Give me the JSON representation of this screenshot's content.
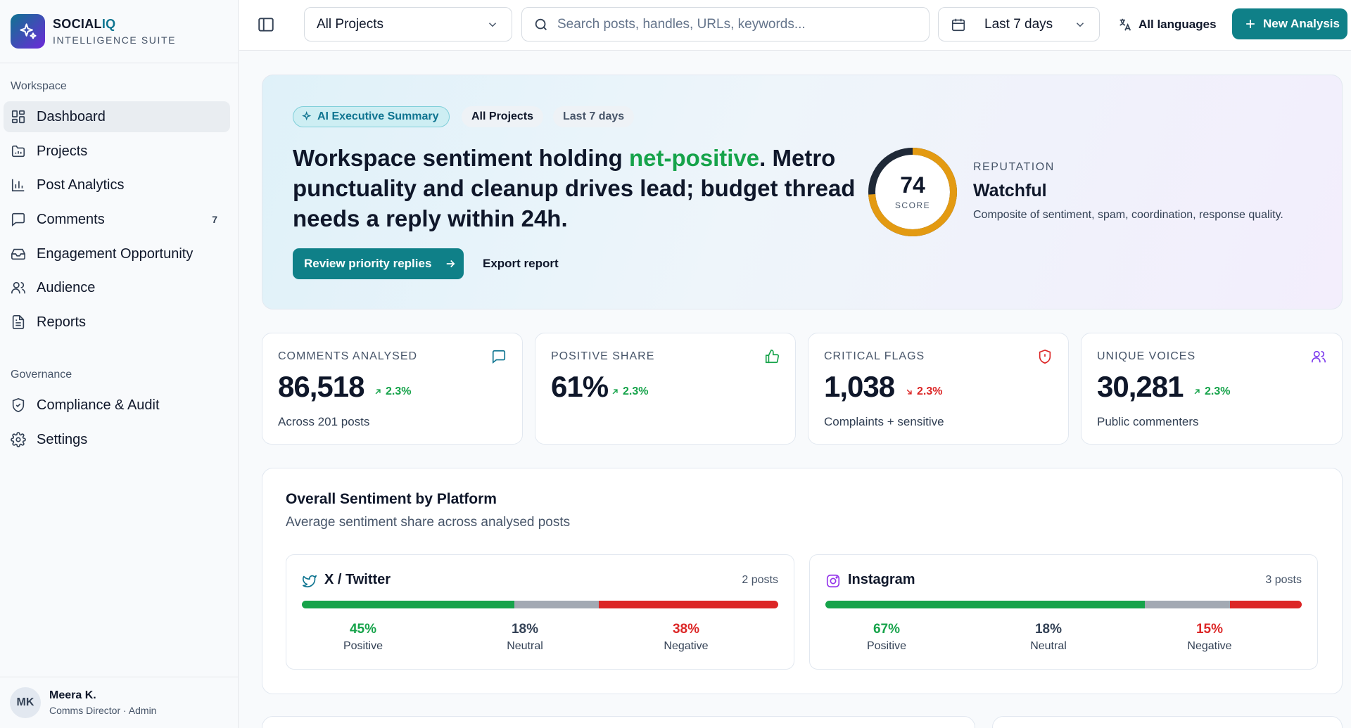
{
  "brand": {
    "name_main": "SOCIAL",
    "name_accent": "IQ",
    "subtitle": "INTELLIGENCE SUITE"
  },
  "sidebar": {
    "workspace_label": "Workspace",
    "governance_label": "Governance",
    "items": [
      {
        "label": "Dashboard",
        "icon": "dashboard-icon",
        "active": true
      },
      {
        "label": "Projects",
        "icon": "folder-icon"
      },
      {
        "label": "Post Analytics",
        "icon": "bar-chart-icon"
      },
      {
        "label": "Comments",
        "icon": "comment-icon",
        "count": "7"
      },
      {
        "label": "Engagement Opportunity",
        "icon": "inbox-icon"
      },
      {
        "label": "Audience",
        "icon": "users-icon"
      },
      {
        "label": "Reports",
        "icon": "document-icon"
      }
    ],
    "governance_items": [
      {
        "label": "Compliance & Audit",
        "icon": "shield-check-icon"
      },
      {
        "label": "Settings",
        "icon": "gear-icon"
      }
    ]
  },
  "user": {
    "initials": "MK",
    "name": "Meera K.",
    "role": "Comms Director · Admin"
  },
  "topbar": {
    "project_select": "All Projects",
    "search_placeholder": "Search posts, handles, URLs, keywords...",
    "date_range": "Last 7 days",
    "language": "All languages",
    "new_analysis": "New Analysis"
  },
  "hero": {
    "chip_ai": "AI Executive Summary",
    "chip_project": "All Projects",
    "chip_range": "Last 7 days",
    "headline_before": "Workspace sentiment holding ",
    "headline_highlight": "net-positive",
    "headline_after": ". Metro punctuality and cleanup drives lead; budget thread needs a reply within 24h.",
    "primary_action": "Review priority replies",
    "secondary_action": "Export report",
    "score": 74,
    "score_max": 100,
    "score_label": "SCORE",
    "reputation_label": "REPUTATION",
    "reputation_status": "Watchful",
    "reputation_desc": "Composite of sentiment, spam, coordination, response quality."
  },
  "kpis": [
    {
      "label": "COMMENTS ANALYSED",
      "value": "86,518",
      "delta": "2.3%",
      "trend": "up",
      "sub": "Across 201 posts",
      "icon": "comment-icon"
    },
    {
      "label": "POSITIVE SHARE",
      "value": "61%",
      "delta": "2.3%",
      "trend": "up",
      "sub": "",
      "icon": "thumbs-up-icon"
    },
    {
      "label": "CRITICAL FLAGS",
      "value": "1,038",
      "delta": "2.3%",
      "trend": "down",
      "sub": "Complaints + sensitive",
      "icon": "shield-alert-icon"
    },
    {
      "label": "UNIQUE VOICES",
      "value": "30,281",
      "delta": "2.3%",
      "trend": "up",
      "sub": "Public commenters",
      "icon": "users-icon"
    }
  ],
  "sentiment": {
    "title": "Overall Sentiment by Platform",
    "subtitle": "Average sentiment share across analysed posts",
    "platforms": [
      {
        "name": "X / Twitter",
        "icon": "twitter-icon",
        "count": "2 posts",
        "positive": 45,
        "neutral": 18,
        "negative": 38,
        "positive_text": "45%",
        "neutral_text": "18%",
        "negative_text": "38%"
      },
      {
        "name": "Instagram",
        "icon": "instagram-icon",
        "count": "3 posts",
        "positive": 67,
        "neutral": 18,
        "negative": 15,
        "positive_text": "67%",
        "neutral_text": "18%",
        "negative_text": "15%"
      }
    ],
    "positive_label": "Positive",
    "neutral_label": "Neutral",
    "negative_label": "Negative"
  },
  "colors": {
    "accent": "#0f8088",
    "positive": "#16a34a",
    "neutral": "#a3a9b3",
    "negative": "#dc2626",
    "gauge": "#e39a12"
  }
}
